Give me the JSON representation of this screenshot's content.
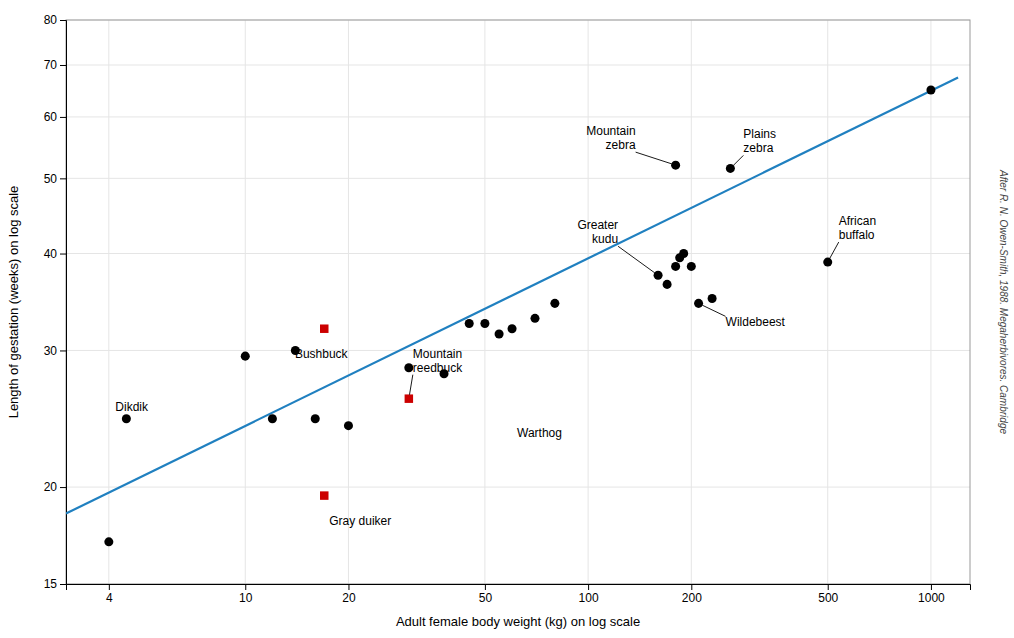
{
  "chart_data": {
    "type": "scatter",
    "log": true,
    "grid": true,
    "xlabel": "Adult female body weight (kg) on log scale",
    "ylabel": "Length of gestation (weeks) on log scale",
    "source": "After R. N. Owen-Smith, 1988. Megaherbivores. Cambridge",
    "xlim": [
      3.0,
      1300
    ],
    "ylim": [
      15,
      80
    ],
    "xticks": [
      4,
      10,
      20,
      50,
      100,
      200,
      500,
      1000
    ],
    "yticks": [
      15,
      20,
      30,
      40,
      50,
      60,
      70,
      80
    ],
    "series": [
      {
        "type": "line",
        "color": "#2080c0",
        "line_style": "solid",
        "x": [
          3.0,
          1200
        ],
        "values": [
          18.49,
          67.45
        ]
      },
      {
        "type": "scatter",
        "color": "black",
        "marker": "circle",
        "x": [
          4.0,
          4.5,
          10.0,
          12.0,
          14.0,
          16.0,
          20.0,
          30.0,
          38.0,
          45.0,
          50.0,
          55.0,
          60.0,
          70.0,
          80.0,
          160.0,
          170.0,
          180.0,
          185.0,
          190.0,
          200.0,
          210.0,
          230.0,
          180.0,
          260.0,
          500.0,
          1000.0
        ],
        "values": [
          17.0,
          24.5,
          29.5,
          24.5,
          30.0,
          24.5,
          24.0,
          28.5,
          28.0,
          32.5,
          32.5,
          31.5,
          32.0,
          33.0,
          34.5,
          37.5,
          36.5,
          38.5,
          39.5,
          40.0,
          38.5,
          34.5,
          35.0,
          52.0,
          51.5,
          39.0,
          65.0
        ]
      },
      {
        "type": "scatter",
        "color": "#cc0000",
        "marker": "square",
        "x": [
          17.0,
          17.0,
          30.0
        ],
        "values": [
          19.5,
          32.0,
          26.0
        ]
      }
    ],
    "annotations": [
      {
        "text": "Dikdik",
        "x": 4.5,
        "y": 24.5
      },
      {
        "text": "Gray duiker",
        "x": 17.0,
        "y": 19.5
      },
      {
        "text": "Bushbuck",
        "x": 17.0,
        "y": 32.0
      },
      {
        "text": "Mountain\nreedbuck",
        "x": 30.0,
        "y": 26.0
      },
      {
        "text": "Warthog",
        "x": 60.0,
        "y": 23.5
      },
      {
        "text": "Greater\nkudu",
        "x": 160.0,
        "y": 37.5
      },
      {
        "text": "Mountain\nzebra",
        "x": 180.0,
        "y": 52.0
      },
      {
        "text": "Plains\nzebra",
        "x": 260.0,
        "y": 51.5
      },
      {
        "text": "Wildebeest",
        "x": 210.0,
        "y": 34.5
      },
      {
        "text": "African\nbuffalo",
        "x": 500.0,
        "y": 39.0
      }
    ]
  }
}
